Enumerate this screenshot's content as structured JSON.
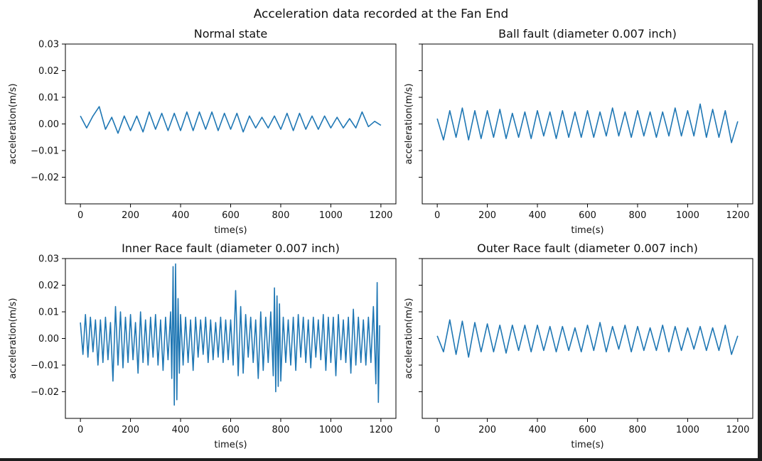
{
  "figure": {
    "suptitle": "Acceleration data recorded at the Fan End"
  },
  "chart_data": [
    {
      "type": "line",
      "title": "Normal state",
      "xlabel": "time(s)",
      "ylabel": "acceleration(m/s)",
      "xlim": [
        -60,
        1260
      ],
      "ylim": [
        -0.03,
        0.03
      ],
      "xticks": [
        0,
        200,
        400,
        600,
        800,
        1000,
        1200
      ],
      "yticks": [
        -0.02,
        -0.01,
        0.0,
        0.01,
        0.02,
        0.03
      ],
      "ytick_labels": [
        "−0.02",
        "−0.01",
        "0.00",
        "0.01",
        "0.02",
        "0.03"
      ],
      "show_ytick_labels": true,
      "color": "#1f77b4",
      "series": [
        {
          "x": [
            0,
            25,
            50,
            75,
            100,
            125,
            150,
            175,
            200,
            225,
            250,
            275,
            300,
            325,
            350,
            375,
            400,
            425,
            450,
            475,
            500,
            525,
            550,
            575,
            600,
            625,
            650,
            675,
            700,
            725,
            750,
            775,
            800,
            825,
            850,
            875,
            900,
            925,
            950,
            975,
            1000,
            1025,
            1050,
            1075,
            1100,
            1125,
            1150,
            1175,
            1200
          ],
          "y": [
            0.003,
            -0.0015,
            0.003,
            0.0065,
            -0.002,
            0.0025,
            -0.0035,
            0.003,
            -0.0025,
            0.003,
            -0.003,
            0.0045,
            -0.002,
            0.004,
            -0.0025,
            0.004,
            -0.0025,
            0.0045,
            -0.0025,
            0.0045,
            -0.002,
            0.0045,
            -0.0025,
            0.004,
            -0.002,
            0.004,
            -0.003,
            0.003,
            -0.0015,
            0.0025,
            -0.0015,
            0.003,
            -0.002,
            0.004,
            -0.0025,
            0.004,
            -0.002,
            0.003,
            -0.002,
            0.003,
            -0.0015,
            0.0025,
            -0.0015,
            0.002,
            -0.0015,
            0.0045,
            -0.001,
            0.001,
            -0.0005
          ]
        }
      ]
    },
    {
      "type": "line",
      "title": "Ball fault (diameter 0.007 inch)",
      "xlabel": "time(s)",
      "ylabel": "acceleration(m/s)",
      "xlim": [
        -60,
        1260
      ],
      "ylim": [
        -0.03,
        0.03
      ],
      "xticks": [
        0,
        200,
        400,
        600,
        800,
        1000,
        1200
      ],
      "yticks": [
        -0.02,
        -0.01,
        0.0,
        0.01,
        0.02,
        0.03
      ],
      "ytick_labels": [
        "−0.02",
        "−0.01",
        "0.00",
        "0.01",
        "0.02",
        "0.03"
      ],
      "show_ytick_labels": false,
      "color": "#1f77b4",
      "series": [
        {
          "x": [
            0,
            25,
            50,
            75,
            100,
            125,
            150,
            175,
            200,
            225,
            250,
            275,
            300,
            325,
            350,
            375,
            400,
            425,
            450,
            475,
            500,
            525,
            550,
            575,
            600,
            625,
            650,
            675,
            700,
            725,
            750,
            775,
            800,
            825,
            850,
            875,
            900,
            925,
            950,
            975,
            1000,
            1025,
            1050,
            1075,
            1100,
            1125,
            1150,
            1175,
            1200
          ],
          "y": [
            0.002,
            -0.006,
            0.005,
            -0.005,
            0.006,
            -0.006,
            0.005,
            -0.0055,
            0.005,
            -0.005,
            0.0055,
            -0.0055,
            0.004,
            -0.005,
            0.0045,
            -0.0055,
            0.005,
            -0.0045,
            0.0045,
            -0.0055,
            0.005,
            -0.005,
            0.0045,
            -0.005,
            0.005,
            -0.005,
            0.0045,
            -0.0045,
            0.006,
            -0.0045,
            0.0045,
            -0.005,
            0.005,
            -0.0045,
            0.0045,
            -0.005,
            0.0045,
            -0.0045,
            0.006,
            -0.0045,
            0.005,
            -0.0045,
            0.0075,
            -0.005,
            0.0055,
            -0.005,
            0.005,
            -0.007,
            0.001
          ]
        }
      ]
    },
    {
      "type": "line",
      "title": "Inner Race fault (diameter 0.007 inch)",
      "xlabel": "time(s)",
      "ylabel": "acceleration(m/s)",
      "xlim": [
        -60,
        1260
      ],
      "ylim": [
        -0.03,
        0.03
      ],
      "xticks": [
        0,
        200,
        400,
        600,
        800,
        1000,
        1200
      ],
      "yticks": [
        -0.02,
        -0.01,
        0.0,
        0.01,
        0.02,
        0.03
      ],
      "ytick_labels": [
        "−0.02",
        "−0.01",
        "0.00",
        "0.01",
        "0.02",
        "0.03"
      ],
      "show_ytick_labels": true,
      "color": "#1f77b4",
      "series": [
        {
          "x": [
            0,
            10,
            20,
            30,
            40,
            50,
            60,
            70,
            80,
            90,
            100,
            110,
            120,
            130,
            140,
            150,
            160,
            170,
            180,
            190,
            200,
            210,
            220,
            230,
            240,
            250,
            260,
            270,
            280,
            290,
            300,
            310,
            320,
            330,
            340,
            350,
            360,
            365,
            370,
            375,
            380,
            385,
            390,
            395,
            400,
            410,
            420,
            430,
            440,
            450,
            460,
            470,
            480,
            490,
            500,
            510,
            520,
            530,
            540,
            550,
            560,
            570,
            580,
            590,
            600,
            610,
            620,
            630,
            640,
            650,
            660,
            670,
            680,
            690,
            700,
            710,
            720,
            730,
            740,
            750,
            760,
            770,
            775,
            780,
            785,
            790,
            795,
            800,
            810,
            820,
            830,
            840,
            850,
            860,
            870,
            880,
            890,
            900,
            910,
            920,
            930,
            940,
            950,
            960,
            970,
            980,
            990,
            1000,
            1010,
            1020,
            1030,
            1040,
            1050,
            1060,
            1070,
            1080,
            1090,
            1100,
            1110,
            1120,
            1130,
            1140,
            1150,
            1160,
            1170,
            1180,
            1185,
            1190,
            1195
          ],
          "y": [
            0.006,
            -0.006,
            0.009,
            -0.007,
            0.008,
            -0.005,
            0.007,
            -0.01,
            0.007,
            -0.009,
            0.008,
            -0.008,
            0.006,
            -0.016,
            0.012,
            -0.01,
            0.01,
            -0.011,
            0.008,
            -0.009,
            0.009,
            -0.008,
            0.006,
            -0.013,
            0.01,
            -0.009,
            0.007,
            -0.01,
            0.008,
            -0.007,
            0.009,
            -0.01,
            0.007,
            -0.012,
            0.008,
            -0.008,
            0.01,
            -0.015,
            0.027,
            -0.025,
            0.028,
            -0.023,
            0.015,
            -0.013,
            0.009,
            -0.01,
            0.008,
            -0.009,
            0.007,
            -0.012,
            0.008,
            -0.007,
            0.007,
            -0.006,
            0.008,
            -0.009,
            0.007,
            -0.008,
            0.006,
            -0.007,
            0.008,
            -0.009,
            0.007,
            -0.008,
            0.007,
            -0.01,
            0.018,
            -0.014,
            0.012,
            -0.013,
            0.009,
            -0.007,
            0.008,
            -0.009,
            0.007,
            -0.015,
            0.01,
            -0.012,
            0.008,
            -0.009,
            0.01,
            -0.014,
            0.019,
            -0.02,
            0.016,
            -0.018,
            0.013,
            -0.016,
            0.008,
            -0.009,
            0.007,
            -0.01,
            0.008,
            -0.012,
            0.009,
            -0.007,
            0.008,
            -0.009,
            0.007,
            -0.011,
            0.008,
            -0.007,
            0.007,
            -0.008,
            0.009,
            -0.012,
            0.008,
            -0.009,
            0.008,
            -0.014,
            0.009,
            -0.008,
            0.007,
            -0.009,
            0.008,
            -0.013,
            0.011,
            -0.01,
            0.008,
            -0.009,
            0.007,
            -0.01,
            0.008,
            -0.009,
            0.012,
            -0.017,
            0.021,
            -0.024,
            0.005
          ]
        }
      ]
    },
    {
      "type": "line",
      "title": "Outer Race fault (diameter 0.007 inch)",
      "xlabel": "time(s)",
      "ylabel": "acceleration(m/s)",
      "xlim": [
        -60,
        1260
      ],
      "ylim": [
        -0.03,
        0.03
      ],
      "xticks": [
        0,
        200,
        400,
        600,
        800,
        1000,
        1200
      ],
      "yticks": [
        -0.02,
        -0.01,
        0.0,
        0.01,
        0.02,
        0.03
      ],
      "ytick_labels": [
        "−0.02",
        "−0.01",
        "0.00",
        "0.01",
        "0.02",
        "0.03"
      ],
      "show_ytick_labels": false,
      "color": "#1f77b4",
      "series": [
        {
          "x": [
            0,
            25,
            50,
            75,
            100,
            125,
            150,
            175,
            200,
            225,
            250,
            275,
            300,
            325,
            350,
            375,
            400,
            425,
            450,
            475,
            500,
            525,
            550,
            575,
            600,
            625,
            650,
            675,
            700,
            725,
            750,
            775,
            800,
            825,
            850,
            875,
            900,
            925,
            950,
            975,
            1000,
            1025,
            1050,
            1075,
            1100,
            1125,
            1150,
            1175,
            1200
          ],
          "y": [
            0.001,
            -0.005,
            0.007,
            -0.006,
            0.0065,
            -0.007,
            0.006,
            -0.005,
            0.0055,
            -0.005,
            0.005,
            -0.0055,
            0.005,
            -0.0045,
            0.005,
            -0.005,
            0.005,
            -0.0045,
            0.0045,
            -0.005,
            0.0045,
            -0.0045,
            0.004,
            -0.005,
            0.005,
            -0.0045,
            0.006,
            -0.005,
            0.0045,
            -0.004,
            0.005,
            -0.005,
            0.0045,
            -0.0045,
            0.004,
            -0.0045,
            0.005,
            -0.005,
            0.0045,
            -0.0045,
            0.004,
            -0.004,
            0.0045,
            -0.0045,
            0.004,
            -0.0045,
            0.005,
            -0.006,
            0.001
          ]
        }
      ]
    }
  ]
}
